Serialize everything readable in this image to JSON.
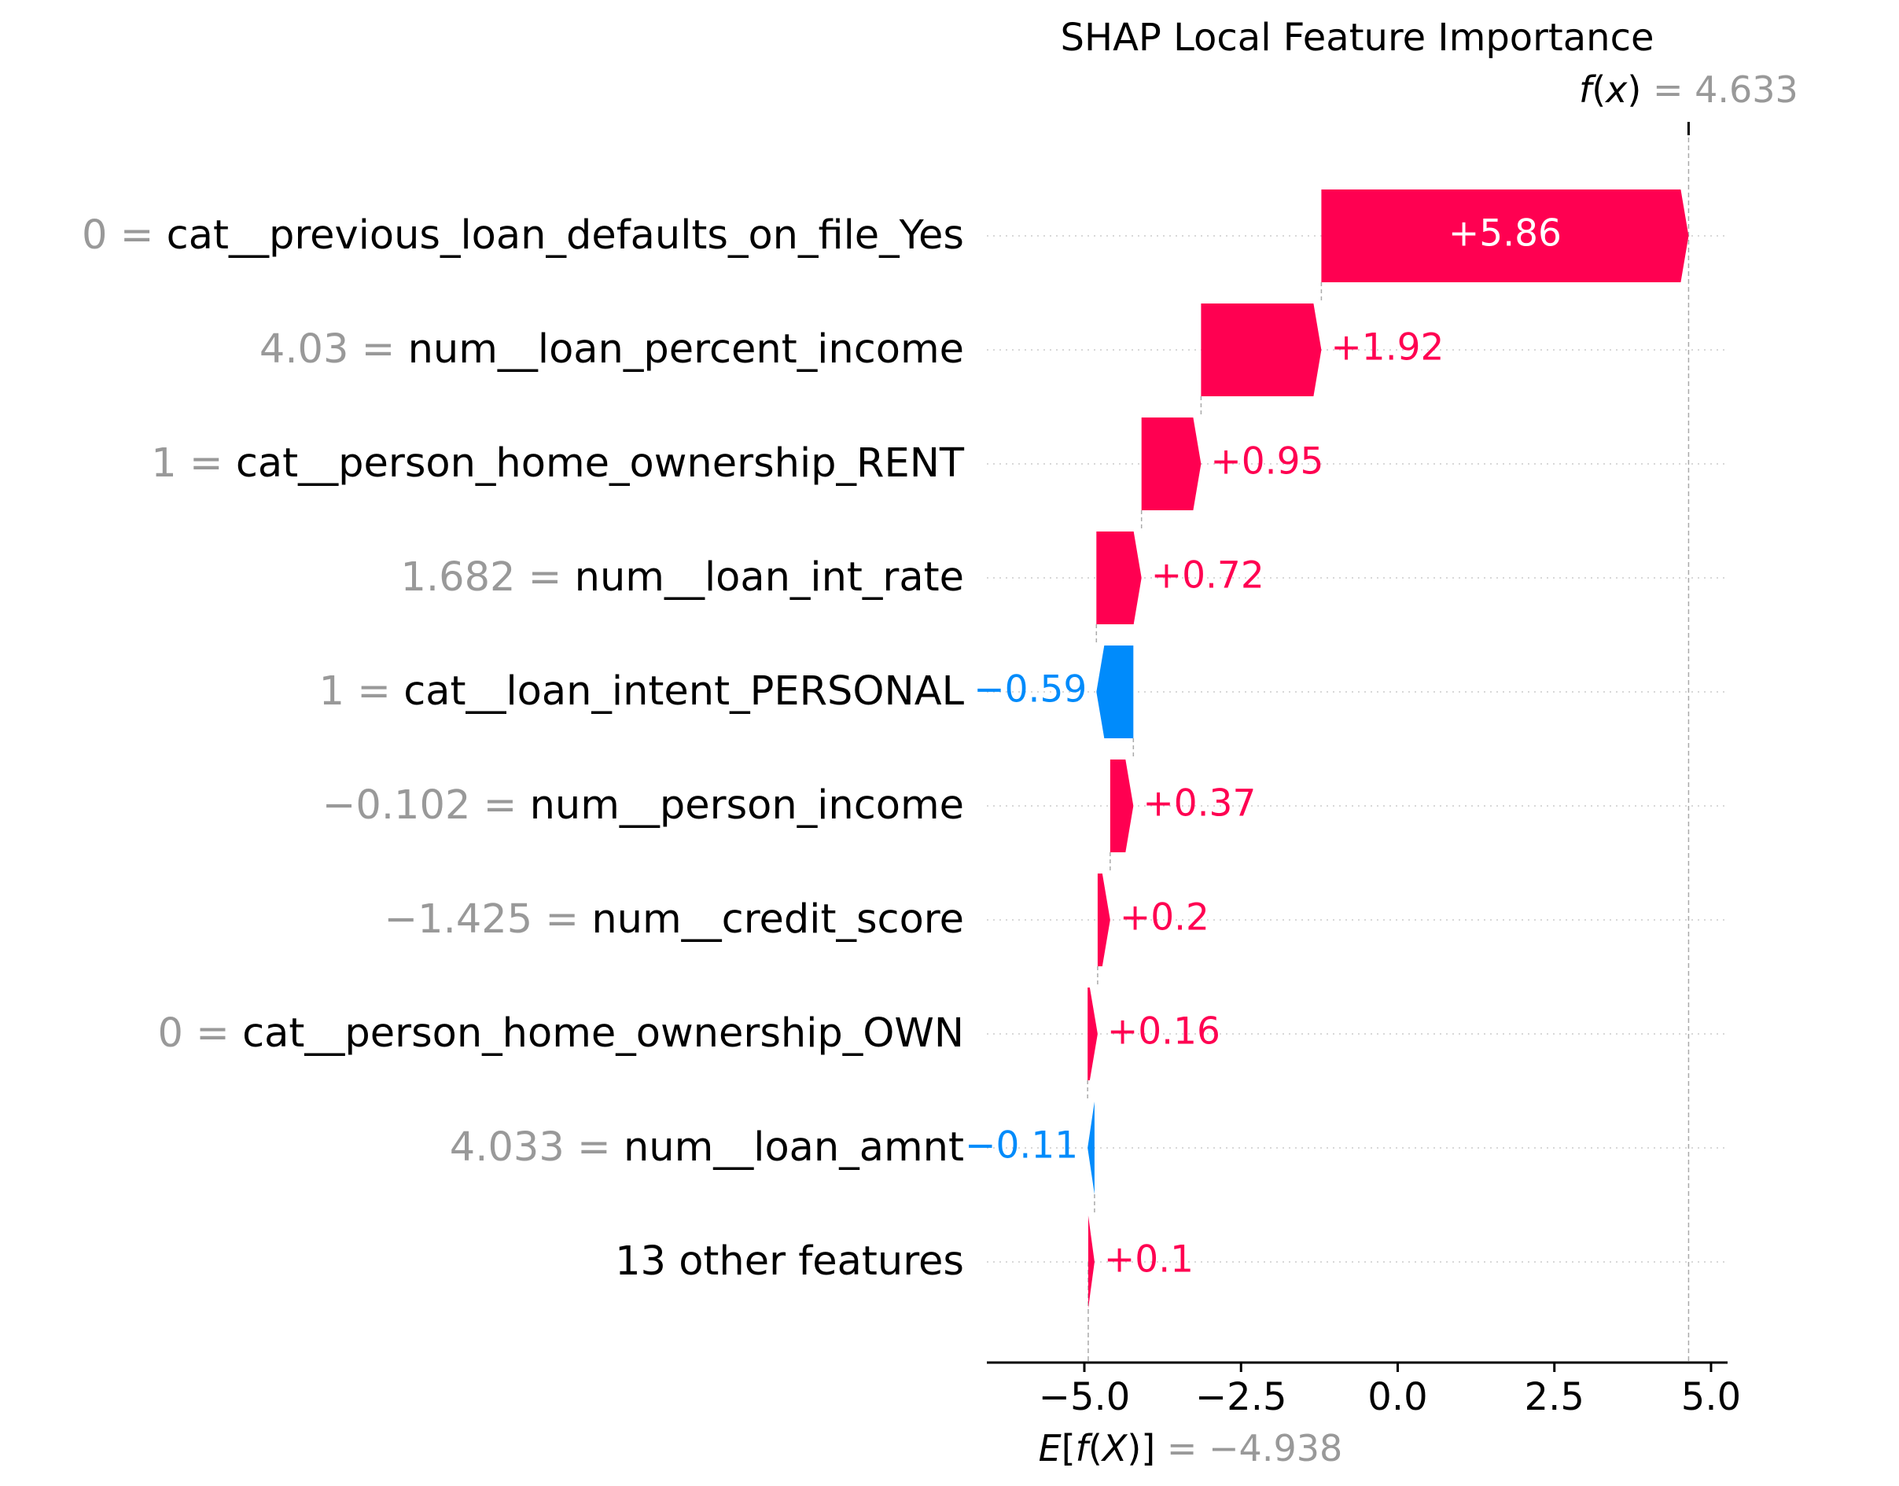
{
  "chart_data": {
    "type": "waterfall",
    "title": "SHAP Local Feature Importance",
    "fx": {
      "prefix": "f",
      "var": "x",
      "value_label": "= 4.633",
      "value": 4.633
    },
    "base": {
      "prefix": "E",
      "inner": "f",
      "var": "X",
      "value_label": "= −4.938",
      "value": -4.938
    },
    "features": [
      {
        "value_label": "0 =",
        "name": "cat__previous_loan_defaults_on_file_Yes",
        "shap": 5.86,
        "label": "+5.86"
      },
      {
        "value_label": "4.03 =",
        "name": "num__loan_percent_income",
        "shap": 1.92,
        "label": "+1.92"
      },
      {
        "value_label": "1 =",
        "name": "cat__person_home_ownership_RENT",
        "shap": 0.95,
        "label": "+0.95"
      },
      {
        "value_label": "1.682 =",
        "name": "num__loan_int_rate",
        "shap": 0.72,
        "label": "+0.72"
      },
      {
        "value_label": "1 =",
        "name": "cat__loan_intent_PERSONAL",
        "shap": -0.59,
        "label": "−0.59"
      },
      {
        "value_label": "−0.102 =",
        "name": "num__person_income",
        "shap": 0.37,
        "label": "+0.37"
      },
      {
        "value_label": "−1.425 =",
        "name": "num__credit_score",
        "shap": 0.2,
        "label": "+0.2"
      },
      {
        "value_label": "0 =",
        "name": "cat__person_home_ownership_OWN",
        "shap": 0.16,
        "label": "+0.16"
      },
      {
        "value_label": "4.033 =",
        "name": "num__loan_amnt",
        "shap": -0.11,
        "label": "−0.11"
      },
      {
        "value_label": "",
        "name": "13 other features",
        "shap": 0.1,
        "label": "+0.1"
      }
    ],
    "x_ticks": [
      {
        "value": -5,
        "label": "−5.0"
      },
      {
        "value": -2.5,
        "label": "−2.5"
      },
      {
        "value": 0,
        "label": "0.0"
      },
      {
        "value": 2.5,
        "label": "2.5"
      },
      {
        "value": 5,
        "label": "5.0"
      }
    ],
    "xlim": [
      -6.556,
      5.264
    ],
    "grid": true,
    "colors": {
      "positive": "#ff0051",
      "negative": "#008bfb",
      "muted": "#999999",
      "text": "#000000"
    }
  }
}
